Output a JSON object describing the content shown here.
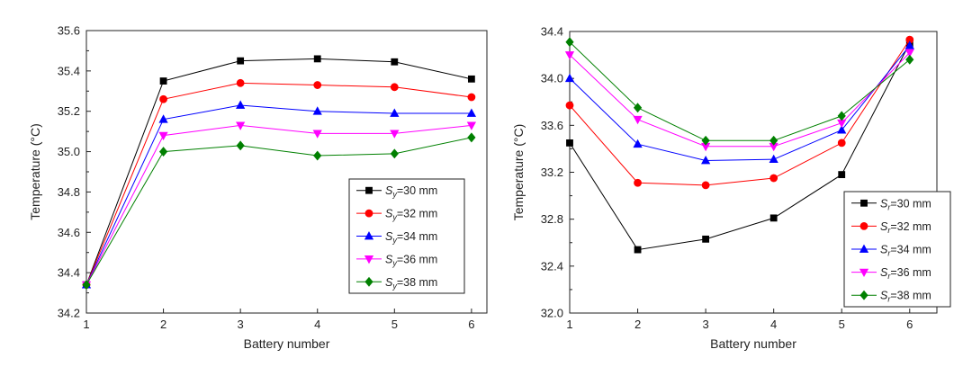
{
  "chart_data": [
    {
      "type": "line",
      "x": [
        1,
        2,
        3,
        4,
        5,
        6
      ],
      "xlabel": "Battery number",
      "ylabel": "Temperature (°C)",
      "xlim": [
        1,
        6.2
      ],
      "ylim": [
        34.2,
        35.6
      ],
      "xticks": [
        1,
        2,
        3,
        4,
        5,
        6
      ],
      "yticks": [
        34.2,
        34.4,
        34.6,
        34.8,
        35.0,
        35.2,
        35.4,
        35.6
      ],
      "ytick_decimals": 1,
      "legend": "lower-right",
      "legend_symbol": "S",
      "legend_subscript": "y",
      "series": [
        {
          "name": "=30 mm",
          "color": "#000000",
          "marker": "square",
          "values": [
            34.34,
            35.35,
            35.45,
            35.46,
            35.445,
            35.36
          ]
        },
        {
          "name": "=32 mm",
          "color": "#ff0000",
          "marker": "circle",
          "values": [
            34.34,
            35.26,
            35.34,
            35.33,
            35.32,
            35.27
          ]
        },
        {
          "name": "=34 mm",
          "color": "#0000ff",
          "marker": "triangle",
          "values": [
            34.34,
            35.16,
            35.23,
            35.2,
            35.19,
            35.19
          ]
        },
        {
          "name": "=36 mm",
          "color": "#ff00ff",
          "marker": "tri-down",
          "values": [
            34.34,
            35.08,
            35.13,
            35.09,
            35.09,
            35.13
          ]
        },
        {
          "name": "=38 mm",
          "color": "#008000",
          "marker": "diamond",
          "values": [
            34.34,
            35.0,
            35.03,
            34.98,
            34.99,
            35.07
          ]
        }
      ]
    },
    {
      "type": "line",
      "x": [
        1,
        2,
        3,
        4,
        5,
        6
      ],
      "xlabel": "Battery number",
      "ylabel": "Temperature (°C)",
      "xlim": [
        1,
        6.4
      ],
      "ylim": [
        32.0,
        34.4
      ],
      "xticks": [
        1,
        2,
        3,
        4,
        5,
        6
      ],
      "yticks": [
        32.0,
        32.4,
        32.8,
        33.2,
        33.6,
        34.0,
        34.4
      ],
      "ytick_decimals": 1,
      "legend": "lower-right",
      "legend_symbol": "S",
      "legend_subscript": "r",
      "series": [
        {
          "name": "=30 mm",
          "color": "#000000",
          "marker": "square",
          "values": [
            33.45,
            32.54,
            32.63,
            32.81,
            33.18,
            34.3
          ]
        },
        {
          "name": "=32 mm",
          "color": "#ff0000",
          "marker": "circle",
          "values": [
            33.77,
            33.11,
            33.09,
            33.15,
            33.45,
            34.33
          ]
        },
        {
          "name": "=34 mm",
          "color": "#0000ff",
          "marker": "triangle",
          "values": [
            34.0,
            33.44,
            33.3,
            33.31,
            33.56,
            34.28
          ]
        },
        {
          "name": "=36 mm",
          "color": "#ff00ff",
          "marker": "tri-down",
          "values": [
            34.2,
            33.65,
            33.42,
            33.42,
            33.62,
            34.22
          ]
        },
        {
          "name": "=38 mm",
          "color": "#008000",
          "marker": "diamond",
          "values": [
            34.31,
            33.75,
            33.47,
            33.47,
            33.68,
            34.16
          ]
        }
      ]
    }
  ]
}
